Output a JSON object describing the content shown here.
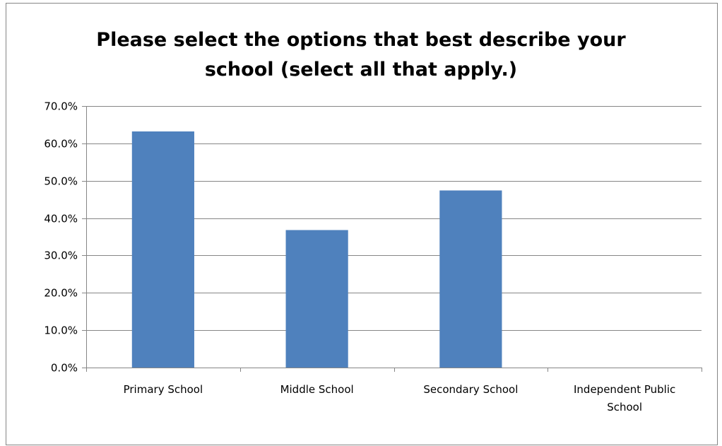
{
  "chart_data": {
    "type": "bar",
    "title_lines": [
      "Please select the options that best describe your",
      "school (select all that apply.)"
    ],
    "categories": [
      [
        "Primary School"
      ],
      [
        "Middle School"
      ],
      [
        "Secondary School"
      ],
      [
        "Independent Public",
        "School"
      ]
    ],
    "values": [
      63.2,
      36.8,
      47.4,
      0.0
    ],
    "y_ticks": [
      "0.0%",
      "10.0%",
      "20.0%",
      "30.0%",
      "40.0%",
      "50.0%",
      "60.0%",
      "70.0%"
    ],
    "ylim": [
      0,
      70
    ],
    "ystep": 10,
    "grid": true,
    "legend": "none",
    "bar_color": "#4f81bd",
    "grid_color": "#868686"
  }
}
